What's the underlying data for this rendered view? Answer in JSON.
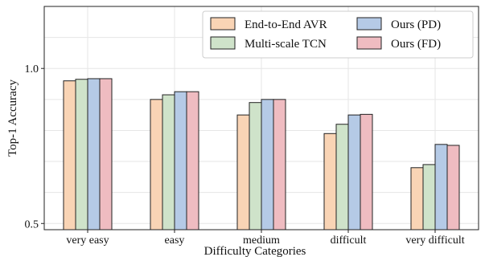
{
  "chart_data": {
    "type": "bar",
    "xlabel": "Difficulty Categories",
    "ylabel": "Top-1 Accuracy",
    "categories": [
      "very easy",
      "easy",
      "medium",
      "difficult",
      "very difficult"
    ],
    "yticks": [
      "0.5",
      "1.0"
    ],
    "ylim": [
      0.48,
      1.2
    ],
    "grid": true,
    "legend_position": "top-right",
    "series": [
      {
        "name": "End-to-End AVR",
        "color": "#f9d4b5",
        "values": [
          0.96,
          0.9,
          0.85,
          0.79,
          0.68
        ]
      },
      {
        "name": "Multi-scale TCN",
        "color": "#cfe3ca",
        "values": [
          0.965,
          0.915,
          0.89,
          0.82,
          0.69
        ]
      },
      {
        "name": "Ours (PD)",
        "color": "#b5cae6",
        "values": [
          0.967,
          0.925,
          0.9,
          0.85,
          0.755
        ]
      },
      {
        "name": "Ours (FD)",
        "color": "#efbcc1",
        "values": [
          0.967,
          0.925,
          0.9,
          0.852,
          0.752
        ]
      }
    ]
  }
}
